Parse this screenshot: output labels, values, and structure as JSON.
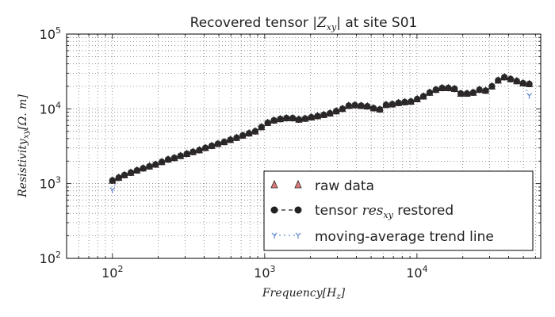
{
  "chart_data": {
    "type": "line",
    "title_prefix": "Recovered tensor ",
    "title_math": "|Z",
    "title_math_sub": "xy",
    "title_math_end": "|",
    "title_suffix": " at site S01",
    "xlabel": "Frequency[H",
    "xlabel_sub": "z",
    "xlabel_end": "]",
    "ylabel": "Resistivity",
    "ylabel_sub": "xy",
    "ylabel_end": "[Ω. m]",
    "x_scale": "log",
    "y_scale": "log",
    "xlim": [
      50,
      65000
    ],
    "ylim": [
      100,
      100000
    ],
    "grid": true,
    "x_ticks": [
      {
        "value": 100,
        "base": "10",
        "exp": "2"
      },
      {
        "value": 1000,
        "base": "10",
        "exp": "3"
      },
      {
        "value": 10000,
        "base": "10",
        "exp": "4"
      }
    ],
    "y_ticks": [
      {
        "value": 100,
        "base": "10",
        "exp": "2"
      },
      {
        "value": 1000,
        "base": "10",
        "exp": "3"
      },
      {
        "value": 10000,
        "base": "10",
        "exp": "4"
      },
      {
        "value": 100000,
        "base": "10",
        "exp": "5"
      }
    ],
    "legend_position": "lower-right",
    "legend": [
      {
        "label": "raw data",
        "marker": "triangle",
        "color": "#e07a7a"
      },
      {
        "label_prefix": "tensor ",
        "label_math": "res",
        "label_sub": "xy",
        "label_suffix": " restored",
        "marker": "circle",
        "color": "#222222"
      },
      {
        "label": "moving-average trend line",
        "marker": "tri-down",
        "color": "#6a8fd0"
      }
    ],
    "x": [
      100,
      110,
      120,
      132,
      145,
      159,
      175,
      192,
      211,
      232,
      255,
      280,
      308,
      338,
      372,
      408,
      449,
      493,
      542,
      595,
      654,
      718,
      789,
      867,
      953,
      1047,
      1150,
      1264,
      1389,
      1526,
      1676,
      1842,
      2024,
      2224,
      2443,
      2684,
      2950,
      3241,
      3561,
      3913,
      4299,
      4724,
      5190,
      5703,
      6266,
      6885,
      7565,
      8312,
      9133,
      10035,
      11026,
      12115,
      13311,
      14626,
      16070,
      17657,
      19400,
      21316,
      23421,
      25733,
      28275,
      31067,
      34135,
      37505,
      41209,
      45279,
      49750,
      54663
    ],
    "series": [
      {
        "name": "raw data",
        "values": [
          1100,
          1200,
          1300,
          1400,
          1500,
          1600,
          1700,
          1800,
          1950,
          2100,
          2200,
          2350,
          2500,
          2650,
          2800,
          3000,
          3200,
          3400,
          3600,
          3850,
          4100,
          4400,
          4700,
          5000,
          5700,
          6500,
          7000,
          7300,
          7500,
          7500,
          7200,
          7400,
          7700,
          8000,
          8300,
          8700,
          9300,
          10000,
          11000,
          11200,
          11000,
          10800,
          10200,
          9800,
          11300,
          11500,
          12000,
          12300,
          12500,
          13500,
          14700,
          16500,
          18000,
          19000,
          19000,
          18500,
          16000,
          16000,
          16500,
          18000,
          17500,
          20000,
          24000,
          26500,
          25000,
          23500,
          22000,
          21500
        ]
      },
      {
        "name": "tensor res_xy restored",
        "values": [
          1100,
          1200,
          1300,
          1400,
          1500,
          1600,
          1700,
          1800,
          1950,
          2100,
          2200,
          2350,
          2500,
          2650,
          2800,
          3000,
          3200,
          3400,
          3600,
          3850,
          4100,
          4400,
          4700,
          5000,
          5700,
          6500,
          7000,
          7300,
          7500,
          7500,
          7200,
          7400,
          7700,
          8000,
          8300,
          8700,
          9300,
          10000,
          11000,
          11200,
          11000,
          10800,
          10200,
          9800,
          11300,
          11500,
          12000,
          12300,
          12500,
          13500,
          14700,
          16500,
          18000,
          19000,
          19000,
          18500,
          16000,
          16000,
          16500,
          18000,
          17500,
          20000,
          24000,
          26500,
          25000,
          23500,
          22000,
          21500
        ]
      },
      {
        "name": "moving-average trend line",
        "values": [
          820,
          1200,
          1300,
          1400,
          1500,
          1600,
          1700,
          1800,
          1950,
          2100,
          2200,
          2350,
          2500,
          2650,
          2800,
          3000,
          3200,
          3400,
          3600,
          3850,
          4100,
          4400,
          4700,
          5000,
          5700,
          6500,
          7000,
          7300,
          7500,
          7500,
          7200,
          7400,
          7700,
          8000,
          8300,
          8700,
          9300,
          10000,
          11000,
          11200,
          11000,
          10800,
          10200,
          9800,
          11300,
          11500,
          12000,
          12300,
          12500,
          13500,
          14700,
          16500,
          18000,
          19000,
          19000,
          18500,
          16000,
          16000,
          16500,
          18000,
          17500,
          20000,
          24000,
          26500,
          25000,
          23500,
          22000,
          15000
        ]
      }
    ]
  }
}
